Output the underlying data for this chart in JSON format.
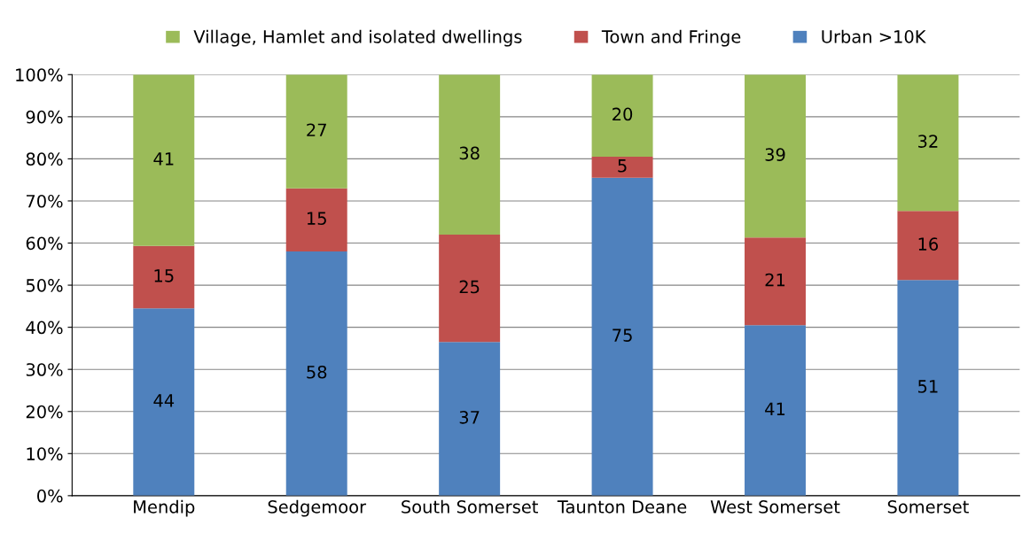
{
  "chart_data": {
    "type": "bar",
    "stacked": true,
    "categories": [
      "Mendip",
      "Sedgemoor",
      "South Somerset",
      "Taunton Deane",
      "West Somerset",
      "Somerset"
    ],
    "series": [
      {
        "name": "Urban >10K",
        "color": "#4f81bd",
        "values": [
          44.5,
          58,
          36.5,
          75.5,
          40.5,
          51.2
        ],
        "value_labels": [
          "44",
          "58",
          "37",
          "75",
          "41",
          "51"
        ]
      },
      {
        "name": "Town and Fringe",
        "color": "#c0504d",
        "values": [
          14.8,
          15,
          25.5,
          5,
          20.8,
          16.4
        ],
        "value_labels": [
          "15",
          "15",
          "25",
          "5",
          "21",
          "16"
        ]
      },
      {
        "name": "Village, Hamlet and isolated dwellings",
        "color": "#9bbb59",
        "values": [
          40.7,
          27,
          38,
          19.5,
          38.7,
          32.4
        ],
        "value_labels": [
          "41",
          "27",
          "38",
          "20",
          "39",
          "32"
        ]
      }
    ],
    "ylim": [
      0,
      100
    ],
    "yticks": [
      {
        "value": 0,
        "label": "0%"
      },
      {
        "value": 10,
        "label": "10%"
      },
      {
        "value": 20,
        "label": "20%"
      },
      {
        "value": 30,
        "label": "30%"
      },
      {
        "value": 40,
        "label": "40%"
      },
      {
        "value": 50,
        "label": "50%"
      },
      {
        "value": 60,
        "label": "60%"
      },
      {
        "value": 70,
        "label": "70%"
      },
      {
        "value": 80,
        "label": "80%"
      },
      {
        "value": 90,
        "label": "90%"
      },
      {
        "value": 100,
        "label": "100%"
      }
    ],
    "grid": "y",
    "legend": "top"
  }
}
